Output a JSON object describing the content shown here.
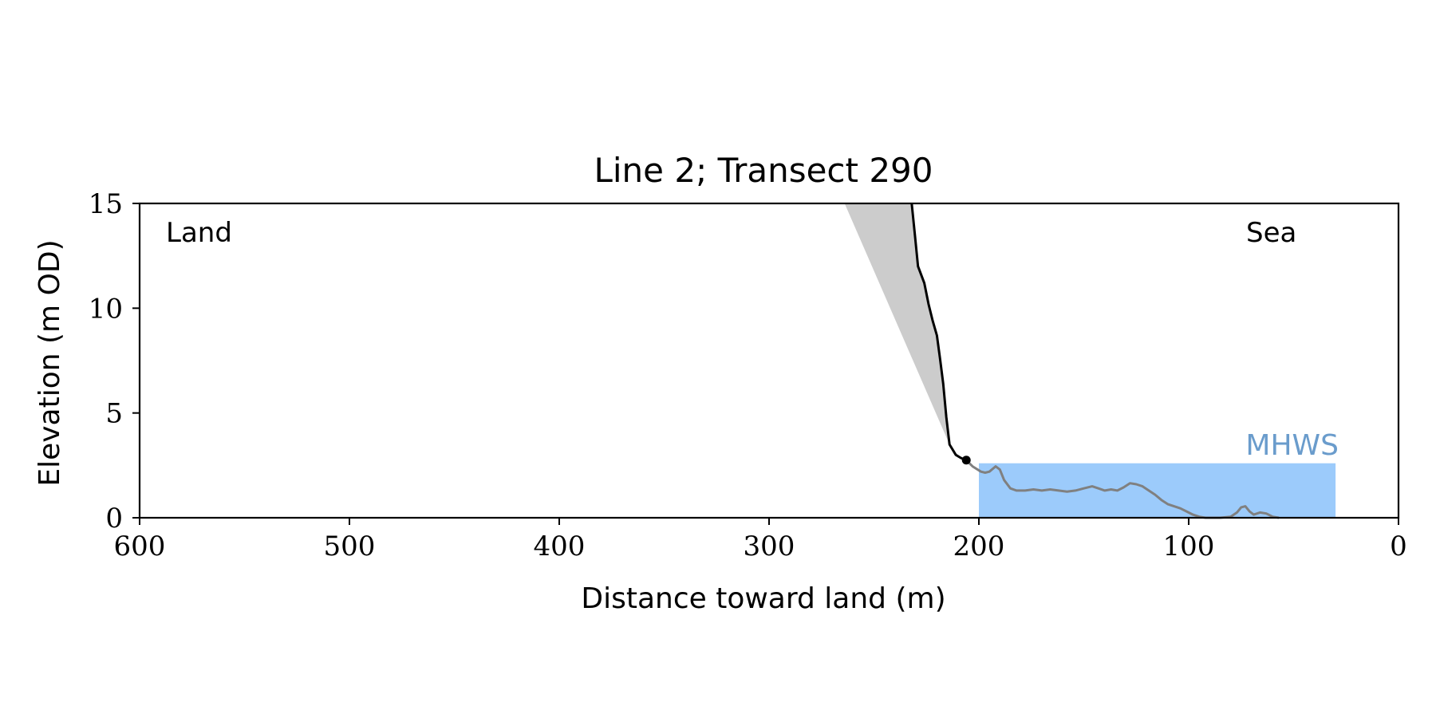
{
  "chart_data": {
    "type": "line",
    "title": "Line 2; Transect 290",
    "xlabel": "Distance toward land (m)",
    "ylabel": "Elevation (m OD)",
    "xlim": [
      600,
      0
    ],
    "ylim": [
      0,
      15
    ],
    "x_ticks": [
      600,
      500,
      400,
      300,
      200,
      100,
      0
    ],
    "y_ticks": [
      0,
      5,
      10,
      15
    ],
    "x_axis_inverted": true,
    "grid": false,
    "annotations": {
      "land": "Land",
      "sea": "Sea",
      "mhws": "MHWS"
    },
    "colors": {
      "cliff": "#000000",
      "beach": "#808080",
      "talus_fill": "#cccccc",
      "mhws_fill": "#9ccbfb",
      "mhws_text": "#6a9ccc"
    },
    "mhws": {
      "level": 2.6,
      "x_range": [
        200,
        30
      ]
    },
    "cliff_toe": {
      "x": 206,
      "y": 2.75
    },
    "series": [
      {
        "role": "cliff",
        "points": [
          [
            232,
            15
          ],
          [
            230.5,
            13.5
          ],
          [
            229,
            12
          ],
          [
            226,
            11.2
          ],
          [
            224,
            10.2
          ],
          [
            222,
            9.4
          ],
          [
            220,
            8.7
          ],
          [
            218.5,
            7.6
          ],
          [
            217,
            6.4
          ],
          [
            215.5,
            4.8
          ],
          [
            214,
            3.5
          ],
          [
            211,
            3.0
          ],
          [
            208.5,
            2.85
          ],
          [
            206,
            2.75
          ]
        ]
      },
      {
        "role": "beach",
        "points": [
          [
            206,
            2.75
          ],
          [
            203,
            2.45
          ],
          [
            199,
            2.2
          ],
          [
            197,
            2.15
          ],
          [
            195,
            2.2
          ],
          [
            192,
            2.45
          ],
          [
            190,
            2.3
          ],
          [
            188,
            1.8
          ],
          [
            185,
            1.4
          ],
          [
            182,
            1.3
          ],
          [
            178,
            1.3
          ],
          [
            174,
            1.35
          ],
          [
            170,
            1.3
          ],
          [
            166,
            1.35
          ],
          [
            162,
            1.3
          ],
          [
            158,
            1.25
          ],
          [
            154,
            1.3
          ],
          [
            150,
            1.4
          ],
          [
            146,
            1.5
          ],
          [
            143,
            1.4
          ],
          [
            140,
            1.3
          ],
          [
            137,
            1.35
          ],
          [
            134,
            1.3
          ],
          [
            131,
            1.45
          ],
          [
            128,
            1.65
          ],
          [
            125,
            1.6
          ],
          [
            122,
            1.5
          ],
          [
            119,
            1.3
          ],
          [
            116,
            1.1
          ],
          [
            113,
            0.85
          ],
          [
            110,
            0.65
          ],
          [
            107,
            0.55
          ],
          [
            104,
            0.45
          ],
          [
            101,
            0.3
          ],
          [
            98,
            0.15
          ],
          [
            95,
            0.05
          ],
          [
            92,
            0
          ],
          [
            85,
            0
          ],
          [
            80,
            0.05
          ],
          [
            77,
            0.25
          ],
          [
            75,
            0.5
          ],
          [
            73,
            0.55
          ],
          [
            71,
            0.3
          ],
          [
            69,
            0.15
          ],
          [
            66,
            0.25
          ],
          [
            63,
            0.2
          ],
          [
            60,
            0.05
          ],
          [
            57,
            0
          ]
        ]
      }
    ],
    "talus_polygon": [
      [
        264,
        15
      ],
      [
        232,
        15
      ],
      [
        230.5,
        13.5
      ],
      [
        229,
        12
      ],
      [
        226,
        11.2
      ],
      [
        224,
        10.2
      ],
      [
        222,
        9.4
      ],
      [
        220,
        8.7
      ],
      [
        218.5,
        7.6
      ],
      [
        217,
        6.4
      ],
      [
        215.5,
        4.8
      ],
      [
        214,
        3.5
      ]
    ]
  }
}
